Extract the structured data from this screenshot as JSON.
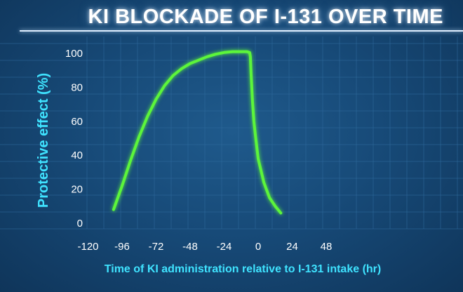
{
  "title": "KI BLOCKADE OF I-131 OVER TIME",
  "colors": {
    "background": "#174a78",
    "curve": "#5cf53a",
    "axis_label": "#3fe3ff",
    "tick": "#ffffff",
    "grid": "#2f6b9e"
  },
  "chart_data": {
    "type": "line",
    "title": "KI BLOCKADE OF I-131 OVER TIME",
    "xlabel": "Time of KI administration relative to I-131 intake (hr)",
    "ylabel": "Protective effect (%)",
    "xlim": [
      -120,
      48
    ],
    "ylim": [
      0,
      100
    ],
    "x_ticks": [
      "-120",
      "-96",
      "-72",
      "-48",
      "-24",
      "0",
      "24",
      "48"
    ],
    "y_ticks": [
      "0",
      "20",
      "40",
      "60",
      "80",
      "100"
    ],
    "grid": true,
    "series": [
      {
        "x": [
          -102,
          -96,
          -90,
          -84,
          -78,
          -72,
          -66,
          -60,
          -54,
          -48,
          -42,
          -36,
          -30,
          -24,
          -18,
          -12,
          -8,
          -6,
          -5.5,
          -5,
          -4,
          -3,
          -2,
          -1,
          0,
          4,
          8,
          12,
          14,
          16
        ],
        "y": [
          8,
          22,
          37,
          51,
          63,
          73,
          81,
          87,
          91,
          94,
          96,
          98,
          99.5,
          100.5,
          101,
          101,
          101,
          100.5,
          98,
          88,
          72,
          60,
          52,
          45,
          38,
          24,
          15,
          10,
          8,
          6
        ]
      }
    ]
  }
}
